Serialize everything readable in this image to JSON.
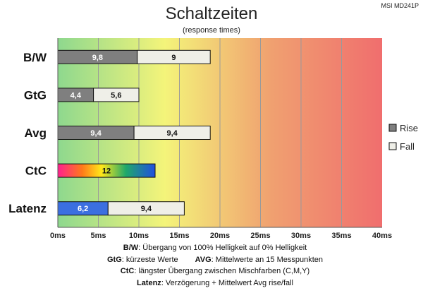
{
  "chart_data": {
    "type": "bar",
    "orientation": "horizontal",
    "stacked": true,
    "title": "Schaltzeiten",
    "subtitle": "(response times)",
    "model": "MSI MD241P",
    "categories": [
      "B/W",
      "GtG",
      "Avg",
      "CtC",
      "Latenz"
    ],
    "series": [
      {
        "name": "Rise",
        "values": [
          9.8,
          4.4,
          9.4,
          12,
          6.2
        ],
        "color": "#7f7f7f"
      },
      {
        "name": "Fall",
        "values": [
          9,
          5.6,
          9.4,
          null,
          9.4
        ],
        "color": "#efefe8"
      }
    ],
    "value_labels": {
      "Rise": [
        "9,8",
        "4,4",
        "9,4",
        "12",
        "6,2"
      ],
      "Fall": [
        "9",
        "5,6",
        "9,4",
        "",
        "9,4"
      ]
    },
    "special_colors": {
      "CtC": "rainbow",
      "Latenz": "#3b6fe0"
    },
    "x_ticks": [
      "0ms",
      "5ms",
      "10ms",
      "15ms",
      "20ms",
      "25ms",
      "30ms",
      "35ms",
      "40ms"
    ],
    "xlim": [
      0,
      40
    ],
    "grid": true,
    "background_gradient": [
      "#8ed88e",
      "#f4f47a",
      "#f0a070",
      "#f06e6e"
    ],
    "legend_position": "right"
  },
  "notes": {
    "bw_label": "B/W",
    "bw_text": ":  Übergang von 100% Helligkeit auf 0% Helligkeit",
    "gtg_label": "GtG",
    "gtg_text": ": kürzeste  Werte",
    "avg_label": "AVG",
    "avg_text": ": Mittelwerte  an 15 Messpunkten",
    "ctc_label": "CtC",
    "ctc_text": ": längster Übergang  zwischen Mischfarben (C,M,Y)",
    "latenz_label": "Latenz",
    "latenz_text": ": Verzögerung  + Mittelwert Avg rise/fall"
  }
}
